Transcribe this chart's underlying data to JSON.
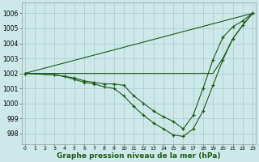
{
  "title": "Graphe pression niveau de la mer (hPa)",
  "bg_color": "#cce8e8",
  "grid_color": "#aacccc",
  "line_color": "#1a5c1a",
  "yticks": [
    998,
    999,
    1000,
    1001,
    1002,
    1003,
    1004,
    1005,
    1006
  ],
  "ylim": [
    997.3,
    1006.7
  ],
  "xlim": [
    -0.3,
    23.3
  ],
  "lines": [
    {
      "x": [
        0,
        23
      ],
      "y": [
        1002,
        1006
      ],
      "has_markers": false
    },
    {
      "x": [
        0,
        19,
        20,
        21,
        22,
        23
      ],
      "y": [
        1002,
        1002,
        1003.0,
        1004.3,
        1005.2,
        1006
      ],
      "has_markers": false
    },
    {
      "x": [
        0,
        3,
        4,
        5,
        6,
        7,
        8,
        9,
        10,
        11,
        12,
        13,
        14,
        15,
        16,
        17,
        18,
        19,
        20,
        21,
        22,
        23
      ],
      "y": [
        1002,
        1001.9,
        1001.8,
        1001.7,
        1001.5,
        1001.4,
        1001.3,
        1001.3,
        1001.2,
        1000.5,
        1000.0,
        999.5,
        999.1,
        998.8,
        998.3,
        999.2,
        1001.0,
        1002.9,
        1004.4,
        1005.1,
        1005.5,
        1006
      ],
      "has_markers": true
    },
    {
      "x": [
        0,
        3,
        4,
        5,
        6,
        7,
        8,
        9,
        10,
        11,
        12,
        13,
        14,
        15,
        16,
        17,
        18,
        19,
        20,
        21,
        22,
        23
      ],
      "y": [
        1002,
        1001.9,
        1001.8,
        1001.6,
        1001.4,
        1001.3,
        1001.1,
        1001.0,
        1000.5,
        999.8,
        999.2,
        998.7,
        998.3,
        997.9,
        997.8,
        998.3,
        999.5,
        1001.2,
        1002.9,
        1004.3,
        1005.2,
        1006
      ],
      "has_markers": true
    }
  ],
  "x_tick_labels": [
    "0",
    "1",
    "2",
    "3",
    "4",
    "5",
    "6",
    "7",
    "8",
    "9",
    "10",
    "11",
    "12",
    "13",
    "14",
    "15",
    "16",
    "17",
    "18",
    "19",
    "20",
    "21",
    "22",
    "23"
  ]
}
